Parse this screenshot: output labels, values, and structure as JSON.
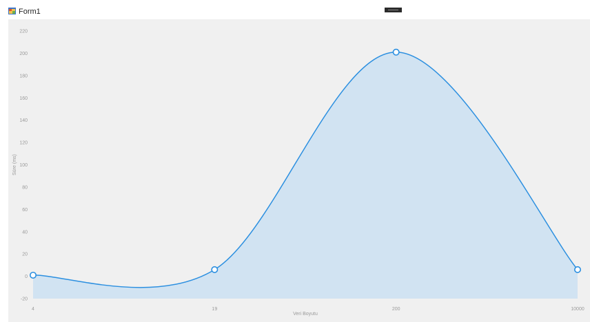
{
  "window": {
    "title": "Form1",
    "icon": "windows-form-icon"
  },
  "chart_data": {
    "type": "area",
    "x_label": "Veri Boyutu",
    "y_label": "Süre (ms)",
    "categories": [
      "4",
      "19",
      "200",
      "10000"
    ],
    "series": [
      {
        "values": [
          1,
          6,
          201,
          6
        ],
        "color": "#2b8fe0",
        "fill": "#d1e3f2"
      }
    ],
    "y_ticks": [
      -20,
      0,
      20,
      40,
      60,
      80,
      100,
      120,
      140,
      160,
      180,
      200,
      220
    ],
    "ylim": [
      -20,
      220
    ],
    "grid": false,
    "background": "#f0f0f0"
  }
}
